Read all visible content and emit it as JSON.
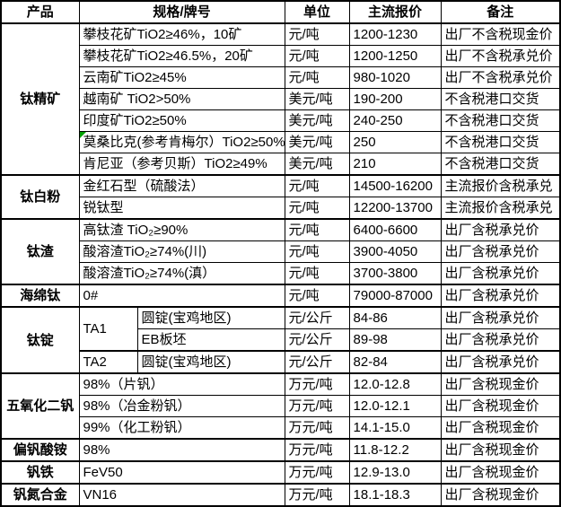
{
  "colors": {
    "border": "#000000",
    "background": "#ffffff",
    "text": "#000000",
    "comment_indicator": "#00a000"
  },
  "table": {
    "header": {
      "product": "产品",
      "spec": "规格/牌号",
      "unit": "单位",
      "price": "主流报价",
      "note": "备注"
    },
    "groups": [
      {
        "product": "钛精矿",
        "rows": [
          {
            "spec": "攀枝花矿TiO2≥46%，10矿",
            "unit": "元/吨",
            "price": "1200-1230",
            "note": "出厂不含税现金价"
          },
          {
            "spec": "攀枝花矿TiO2≥46.5%，20矿",
            "unit": "元/吨",
            "price": "1200-1250",
            "note": "出厂不含税承兑价"
          },
          {
            "spec": "云南矿TiO2≥45%",
            "unit": "元/吨",
            "price": "980-1020",
            "note": "出厂不含税承兑价"
          },
          {
            "spec": "越南矿 TiO2>50%",
            "unit": "美元/吨",
            "price": "190-200",
            "note": "不含税港口交货"
          },
          {
            "spec": "印度矿TiO2≥50%",
            "unit": "美元/吨",
            "price": "240-250",
            "note": "不含税港口交货"
          },
          {
            "spec": "莫桑比克(参考肯梅尔）TiO2≥50%",
            "unit": "美元/吨",
            "price": "250",
            "note": "不含税港口交货",
            "has_comment_indicator": true
          },
          {
            "spec": "肯尼亚（参考贝斯）TiO2≥49%",
            "unit": "美元/吨",
            "price": "210",
            "note": "不含税港口交货"
          }
        ]
      },
      {
        "product": "钛白粉",
        "rows": [
          {
            "spec": "金红石型（硫酸法）",
            "unit": "元/吨",
            "price": "14500-16200",
            "note": "主流报价含税承兑"
          },
          {
            "spec": "锐钛型",
            "unit": "元/吨",
            "price": "12200-13700",
            "note": "主流报价含税承兑"
          }
        ]
      },
      {
        "product": "钛渣",
        "rows": [
          {
            "spec": "高钛渣 TiO₂≥90%",
            "unit": "元/吨",
            "price": "6400-6600",
            "note": "出厂含税承兑价"
          },
          {
            "spec": "酸溶渣TiO₂≥74%(川)",
            "unit": "元/吨",
            "price": "3900-4050",
            "note": "出厂含税承兑价"
          },
          {
            "spec": "酸溶渣TiO₂≥74%(滇）",
            "unit": "元/吨",
            "price": "3700-3800",
            "note": "出厂含税承兑价"
          }
        ]
      },
      {
        "product": "海绵钛",
        "rows": [
          {
            "spec": "0#",
            "unit": "元/吨",
            "price": "79000-87000",
            "note": "出厂含税承兑价"
          }
        ]
      },
      {
        "product": "钛锭",
        "rows": [
          {
            "grade": "TA1",
            "spec": "圆锭(宝鸡地区)",
            "unit": "元/公斤",
            "price": "84-86",
            "note": "出厂含税承兑价"
          },
          {
            "spec": "EB板坯",
            "unit": "元/公斤",
            "price": "89-98",
            "note": "出厂含税承兑价"
          },
          {
            "grade": "TA2",
            "spec": "圆锭(宝鸡地区)",
            "unit": "元/公斤",
            "price": "82-84",
            "note": "出厂含税承兑价"
          }
        ]
      },
      {
        "product": "五氧化二钒",
        "rows": [
          {
            "spec": "98%（片钒）",
            "unit": "万元/吨",
            "price": "12.0-12.8",
            "note": "出厂含税现金价"
          },
          {
            "spec": "98%（冶金粉钒）",
            "unit": "万元/吨",
            "price": "12.0-12.1",
            "note": "出厂含税现金价"
          },
          {
            "spec": "99%（化工粉钒）",
            "unit": "万元/吨",
            "price": "14.1-15.0",
            "note": "出厂含税现金价"
          }
        ]
      },
      {
        "product": "偏钒酸铵",
        "rows": [
          {
            "spec": "98%",
            "unit": "万元/吨",
            "price": "11.8-12.2",
            "note": "出厂含税现金价"
          }
        ]
      },
      {
        "product": "钒铁",
        "rows": [
          {
            "spec": "FeV50",
            "unit": "万元/吨",
            "price": "12.9-13.0",
            "note": "出厂含税现金价"
          }
        ]
      },
      {
        "product": "钒氮合金",
        "rows": [
          {
            "spec": "VN16",
            "unit": "万元/吨",
            "price": "18.1-18.3",
            "note": "出厂含税现金价"
          }
        ]
      }
    ]
  },
  "chart_data": {
    "type": "table",
    "columns": [
      "产品",
      "规格/牌号",
      "单位",
      "主流报价",
      "备注"
    ],
    "rows": [
      [
        "钛精矿",
        "攀枝花矿TiO2≥46%，10矿",
        "元/吨",
        "1200-1230",
        "出厂不含税现金价"
      ],
      [
        "钛精矿",
        "攀枝花矿TiO2≥46.5%，20矿",
        "元/吨",
        "1200-1250",
        "出厂不含税承兑价"
      ],
      [
        "钛精矿",
        "云南矿TiO2≥45%",
        "元/吨",
        "980-1020",
        "出厂不含税承兑价"
      ],
      [
        "钛精矿",
        "越南矿 TiO2>50%",
        "美元/吨",
        "190-200",
        "不含税港口交货"
      ],
      [
        "钛精矿",
        "印度矿TiO2≥50%",
        "美元/吨",
        "240-250",
        "不含税港口交货"
      ],
      [
        "钛精矿",
        "莫桑比克(参考肯梅尔）TiO2≥50%",
        "美元/吨",
        "250",
        "不含税港口交货"
      ],
      [
        "钛精矿",
        "肯尼亚（参考贝斯）TiO2≥49%",
        "美元/吨",
        "210",
        "不含税港口交货"
      ],
      [
        "钛白粉",
        "金红石型（硫酸法）",
        "元/吨",
        "14500-16200",
        "主流报价含税承兑"
      ],
      [
        "钛白粉",
        "锐钛型",
        "元/吨",
        "12200-13700",
        "主流报价含税承兑"
      ],
      [
        "钛渣",
        "高钛渣 TiO₂≥90%",
        "元/吨",
        "6400-6600",
        "出厂含税承兑价"
      ],
      [
        "钛渣",
        "酸溶渣TiO₂≥74%(川)",
        "元/吨",
        "3900-4050",
        "出厂含税承兑价"
      ],
      [
        "钛渣",
        "酸溶渣TiO₂≥74%(滇）",
        "元/吨",
        "3700-3800",
        "出厂含税承兑价"
      ],
      [
        "海绵钛",
        "0#",
        "元/吨",
        "79000-87000",
        "出厂含税承兑价"
      ],
      [
        "钛锭",
        "TA1 圆锭(宝鸡地区)",
        "元/公斤",
        "84-86",
        "出厂含税承兑价"
      ],
      [
        "钛锭",
        "TA1 EB板坯",
        "元/公斤",
        "89-98",
        "出厂含税承兑价"
      ],
      [
        "钛锭",
        "TA2 圆锭(宝鸡地区)",
        "元/公斤",
        "82-84",
        "出厂含税承兑价"
      ],
      [
        "五氧化二钒",
        "98%（片钒）",
        "万元/吨",
        "12.0-12.8",
        "出厂含税现金价"
      ],
      [
        "五氧化二钒",
        "98%（冶金粉钒）",
        "万元/吨",
        "12.0-12.1",
        "出厂含税现金价"
      ],
      [
        "五氧化二钒",
        "99%（化工粉钒）",
        "万元/吨",
        "14.1-15.0",
        "出厂含税现金价"
      ],
      [
        "偏钒酸铵",
        "98%",
        "万元/吨",
        "11.8-12.2",
        "出厂含税现金价"
      ],
      [
        "钒铁",
        "FeV50",
        "万元/吨",
        "12.9-13.0",
        "出厂含税现金价"
      ],
      [
        "钒氮合金",
        "VN16",
        "万元/吨",
        "18.1-18.3",
        "出厂含税现金价"
      ]
    ]
  }
}
